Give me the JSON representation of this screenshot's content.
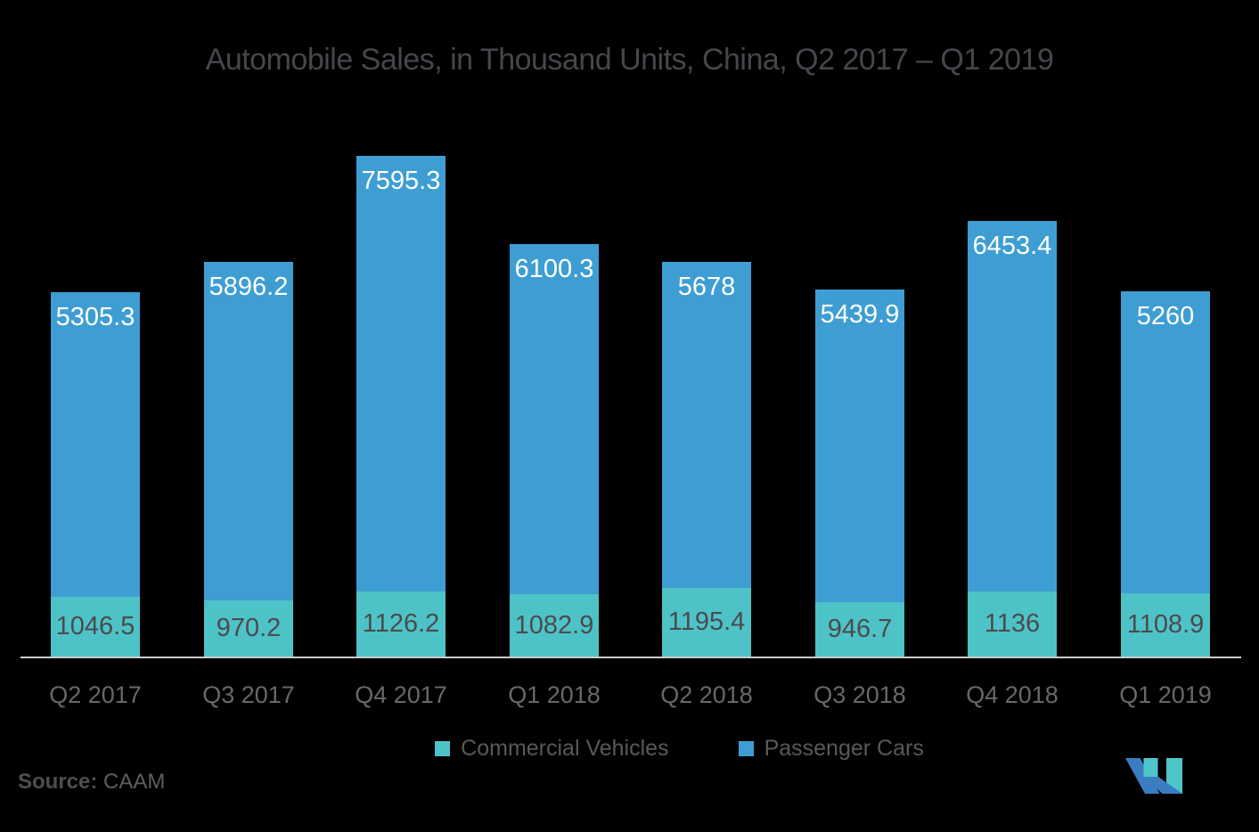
{
  "title": "Automobile Sales, in Thousand Units, China, Q2 2017 – Q1 2019",
  "chart_data": {
    "type": "bar",
    "stacked": true,
    "title": "Automobile Sales, in Thousand Units, China, Q2 2017 – Q1 2019",
    "xlabel": "",
    "ylabel": "",
    "categories": [
      "Q2 2017",
      "Q3 2017",
      "Q4 2017",
      "Q1 2018",
      "Q2 2018",
      "Q3 2018",
      "Q4 2018",
      "Q1 2019"
    ],
    "series": [
      {
        "name": "Commercial Vehicles",
        "color": "#4EC3C7",
        "values": [
          1046.5,
          970.2,
          1126.2,
          1082.9,
          1195.4,
          946.7,
          1136,
          1108.9
        ]
      },
      {
        "name": "Passenger Cars",
        "color": "#3E9ED3",
        "values": [
          5305.3,
          5896.2,
          7595.3,
          6100.3,
          5678,
          5439.9,
          6453.4,
          5260
        ]
      }
    ],
    "value_labels_visible": true,
    "grid": false,
    "legend_position": "bottom",
    "ylim": [
      0,
      8721.5
    ]
  },
  "legend": {
    "items": [
      {
        "label": "Commercial Vehicles",
        "color": "#4EC3C7"
      },
      {
        "label": "Passenger Cars",
        "color": "#3E9ED3"
      }
    ]
  },
  "source": {
    "label": "Source:",
    "value": "CAAM"
  },
  "logo": {
    "name": "mordor-intelligence-logo",
    "blue": "#3A7DC0",
    "teal": "#4EC5C9"
  },
  "colors": {
    "background": "#000000",
    "title_text": "#45474C",
    "axis_line": "#CCCCCC",
    "bar_value_on_blue": "#FFFFFF",
    "bar_value_on_teal": "#4A4B4D",
    "x_label_text": "#67686B",
    "legend_text": "#58595B"
  }
}
